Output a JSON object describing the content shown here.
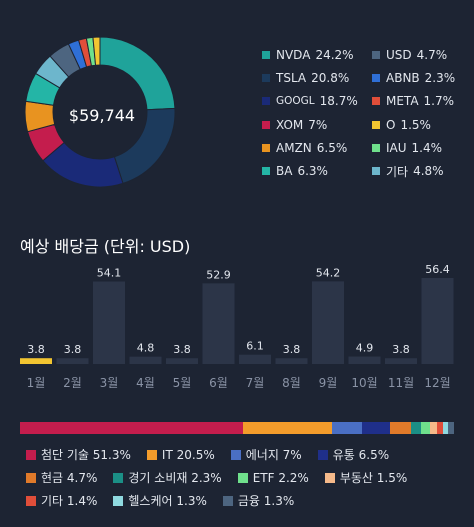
{
  "total": "$59,744",
  "chart_data": [
    {
      "type": "pie",
      "center_label": "$59,744",
      "slices": [
        {
          "label": "NVDA",
          "value": 24.2,
          "display": "24.2%",
          "color": "#1fa39a"
        },
        {
          "label": "TSLA",
          "value": 20.8,
          "display": "20.8%",
          "color": "#1c3a5c"
        },
        {
          "label": "GOOGL",
          "value": 18.7,
          "display": "18.7%",
          "color": "#1a2a78"
        },
        {
          "label": "XOM",
          "value": 7,
          "display": "7%",
          "color": "#c41d4d"
        },
        {
          "label": "AMZN",
          "value": 6.5,
          "display": "6.5%",
          "color": "#e89320"
        },
        {
          "label": "BA",
          "value": 6.3,
          "display": "6.3%",
          "color": "#24b5a6"
        },
        {
          "label": "기타",
          "value": 4.8,
          "display": "4.8%",
          "color": "#6db6cc"
        },
        {
          "label": "USD",
          "value": 4.7,
          "display": "4.7%",
          "color": "#4d6580"
        },
        {
          "label": "ABNB",
          "value": 2.3,
          "display": "2.3%",
          "color": "#2f6fd6"
        },
        {
          "label": "META",
          "value": 1.7,
          "display": "1.7%",
          "color": "#e04e3a"
        },
        {
          "label": "IAU",
          "value": 1.4,
          "display": "1.4%",
          "color": "#6fe08c"
        },
        {
          "label": "O",
          "value": 1.5,
          "display": "1.5%",
          "color": "#f2c531"
        }
      ],
      "legend_col1": [
        {
          "label": "NVDA",
          "pct": "24.2%",
          "color": "#1fa39a"
        },
        {
          "label": "TSLA",
          "pct": "20.8%",
          "color": "#1c3a5c"
        },
        {
          "label": "GOOGL",
          "pct": "18.7%",
          "color": "#1a2a78"
        },
        {
          "label": "XOM",
          "pct": "7%",
          "color": "#c41d4d"
        },
        {
          "label": "AMZN",
          "pct": "6.5%",
          "color": "#e89320"
        },
        {
          "label": "BA",
          "pct": "6.3%",
          "color": "#24b5a6"
        }
      ],
      "legend_col2": [
        {
          "label": "USD",
          "pct": "4.7%",
          "color": "#4d6580"
        },
        {
          "label": "ABNB",
          "pct": "2.3%",
          "color": "#2f6fd6"
        },
        {
          "label": "META",
          "pct": "1.7%",
          "color": "#e04e3a"
        },
        {
          "label": "O",
          "pct": "1.5%",
          "color": "#f2c531"
        },
        {
          "label": "IAU",
          "pct": "1.4%",
          "color": "#6fe08c"
        },
        {
          "label": "기타",
          "pct": "4.8%",
          "color": "#6db6cc"
        }
      ]
    },
    {
      "type": "bar",
      "title": "예상 배당금 (단위: USD)",
      "categories": [
        "1월",
        "2월",
        "3월",
        "4월",
        "5월",
        "6월",
        "7월",
        "8월",
        "9월",
        "10월",
        "11월",
        "12월"
      ],
      "values": [
        3.8,
        3.8,
        54.1,
        4.8,
        3.8,
        52.9,
        6.1,
        3.8,
        54.2,
        4.9,
        3.8,
        56.4
      ],
      "labels": [
        "3.8",
        "3.8",
        "54.1",
        "4.8",
        "3.8",
        "52.9",
        "6.1",
        "3.8",
        "54.2",
        "4.9",
        "3.8",
        "56.4"
      ],
      "highlight_index": 0,
      "highlight_color": "#f2c531",
      "bar_color": "#2c3548"
    },
    {
      "type": "bar",
      "orientation": "stacked-horizontal",
      "series": [
        {
          "name": "첨단 기술",
          "value": 51.3,
          "display": "51.3%",
          "color": "#c41d4d"
        },
        {
          "name": "IT",
          "value": 20.5,
          "display": "20.5%",
          "color": "#f39c2b"
        },
        {
          "name": "에너지",
          "value": 7,
          "display": "7%",
          "color": "#4a6fc4"
        },
        {
          "name": "유통",
          "value": 6.5,
          "display": "6.5%",
          "color": "#1f2f8a"
        },
        {
          "name": "현금",
          "value": 4.7,
          "display": "4.7%",
          "color": "#e07a2a"
        },
        {
          "name": "경기 소비재",
          "value": 2.3,
          "display": "2.3%",
          "color": "#1b8f86"
        },
        {
          "name": "ETF",
          "value": 2.2,
          "display": "2.2%",
          "color": "#6fe08c"
        },
        {
          "name": "부동산",
          "value": 1.5,
          "display": "1.5%",
          "color": "#f5b98a"
        },
        {
          "name": "기타",
          "value": 1.4,
          "display": "1.4%",
          "color": "#e04e3a"
        },
        {
          "name": "헬스케어",
          "value": 1.3,
          "display": "1.3%",
          "color": "#8fd9e0"
        },
        {
          "name": "금융",
          "value": 1.3,
          "display": "1.3%",
          "color": "#4d6580"
        }
      ],
      "legend_rows": [
        [
          0,
          1,
          2,
          3
        ],
        [
          4,
          5,
          6,
          7
        ],
        [
          8,
          9,
          10
        ]
      ]
    }
  ]
}
